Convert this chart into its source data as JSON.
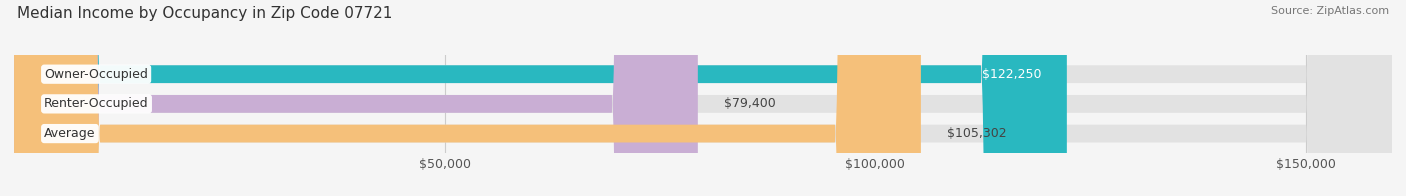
{
  "title": "Median Income by Occupancy in Zip Code 07721",
  "source": "Source: ZipAtlas.com",
  "categories": [
    "Owner-Occupied",
    "Renter-Occupied",
    "Average"
  ],
  "values": [
    122250,
    79400,
    105302
  ],
  "labels": [
    "$122,250",
    "$79,400",
    "$105,302"
  ],
  "bar_colors": [
    "#29b8c0",
    "#c9aed4",
    "#f5c07a"
  ],
  "label_colors": [
    "#ffffff",
    "#444444",
    "#444444"
  ],
  "bg_color": "#f5f5f5",
  "bar_bg_color": "#e2e2e2",
  "xlim": [
    0,
    160000
  ],
  "xticks": [
    0,
    50000,
    100000,
    150000
  ],
  "xtick_labels": [
    "",
    "$50,000",
    "$100,000",
    "$150,000"
  ],
  "bar_height": 0.6,
  "title_fontsize": 11,
  "label_fontsize": 9,
  "tick_fontsize": 9
}
